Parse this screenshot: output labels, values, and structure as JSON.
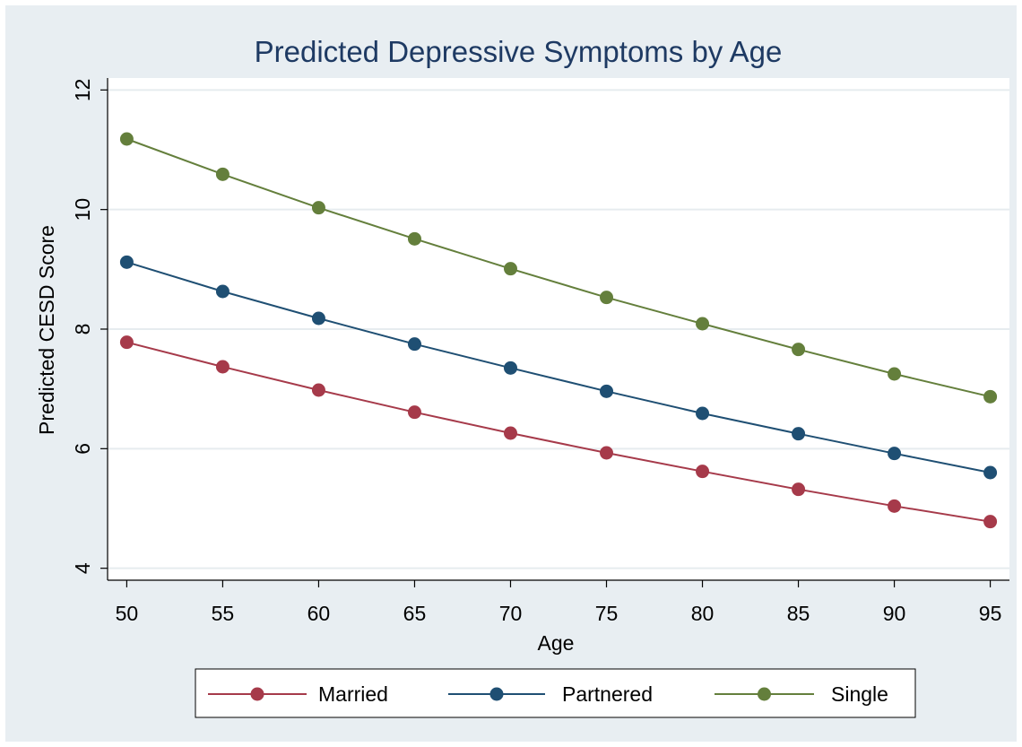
{
  "chart_data": {
    "type": "line",
    "title": "Predicted Depressive Symptoms by Age",
    "xlabel": "Age",
    "ylabel": "Predicted CESD Score",
    "x": [
      50,
      55,
      60,
      65,
      70,
      75,
      80,
      85,
      90,
      95
    ],
    "xlim": [
      49,
      96
    ],
    "ylim": [
      3.8,
      12.2
    ],
    "x_ticks": [
      "50",
      "55",
      "60",
      "65",
      "70",
      "75",
      "80",
      "85",
      "90",
      "95"
    ],
    "y_ticks": [
      "4",
      "6",
      "8",
      "10",
      "12"
    ],
    "y_tick_values": [
      4,
      6,
      8,
      10,
      12
    ],
    "grid": "horizontal",
    "legend_position": "bottom",
    "series": [
      {
        "name": "Married",
        "color": "#a63a4a",
        "values": [
          7.78,
          7.37,
          6.98,
          6.61,
          6.26,
          5.93,
          5.62,
          5.32,
          5.04,
          4.78
        ]
      },
      {
        "name": "Partnered",
        "color": "#1f4f73",
        "values": [
          9.12,
          8.63,
          8.18,
          7.75,
          7.35,
          6.96,
          6.59,
          6.25,
          5.92,
          5.6
        ]
      },
      {
        "name": "Single",
        "color": "#647f3c",
        "values": [
          11.18,
          10.59,
          10.03,
          9.51,
          9.01,
          8.53,
          8.09,
          7.66,
          7.25,
          6.87
        ]
      }
    ]
  },
  "colors": {
    "outer_background": "#e8eef2",
    "plot_background": "#ffffff",
    "title_color": "#1e3a63",
    "grid_color": "#e6ecef"
  }
}
